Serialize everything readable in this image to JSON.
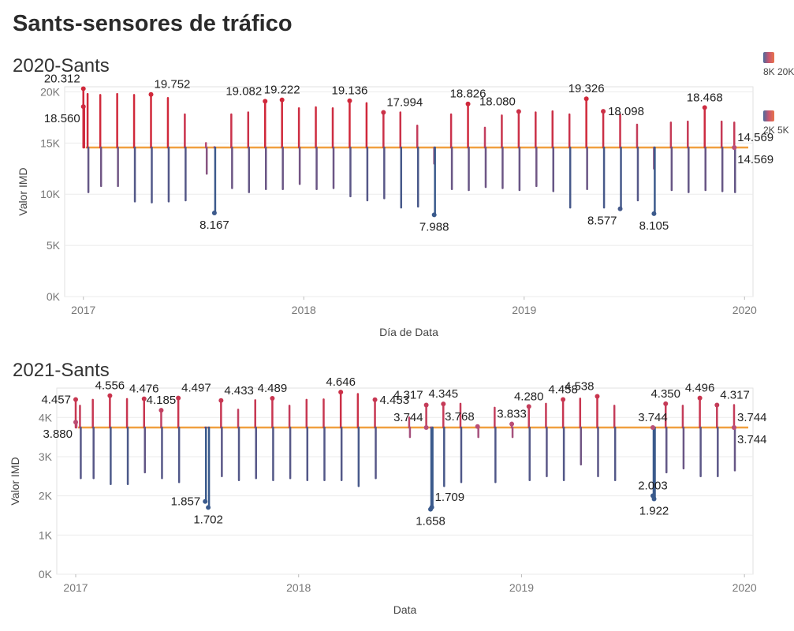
{
  "dashboard": {
    "title": "Sants-sensores de tráfico"
  },
  "legend": [
    {
      "label": "8K 20K",
      "gradient": [
        "#4a6a9c",
        "#c85570",
        "#e8744a"
      ]
    },
    {
      "label": "2K 5K",
      "gradient": [
        "#4a6a9c",
        "#c85570",
        "#e8744a"
      ]
    }
  ],
  "colors": {
    "low": "#3a5a8c",
    "mid": "#b8507a",
    "high": "#d0283a",
    "reference": "#f0a040",
    "grid": "#ebebeb"
  },
  "chart_data": [
    {
      "type": "line",
      "title": "2020-Sants",
      "xlabel": "Día de Data",
      "ylabel": "Valor IMD",
      "x_ticks": [
        "2017",
        "2018",
        "2019",
        "2020"
      ],
      "y_ticks": [
        "0K",
        "5K",
        "10K",
        "15K",
        "20K"
      ],
      "ylim": [
        0,
        20500
      ],
      "xlim": [
        "2016-12-01",
        "2020-01-15"
      ],
      "grid": true,
      "reference_value": 14569,
      "series": [
        {
          "values": [
            {
              "x": "2017-01-01",
              "high": 20312,
              "low": 18560
            },
            {
              "x": "2017-01-08",
              "high": 19800,
              "low": 10200
            },
            {
              "x": "2017-01-29",
              "high": 19700,
              "low": 10800
            },
            {
              "x": "2017-02-26",
              "high": 19800,
              "low": 10800
            },
            {
              "x": "2017-03-26",
              "high": 19700,
              "low": 9300
            },
            {
              "x": "2017-04-23",
              "high": 19752,
              "low": 9200
            },
            {
              "x": "2017-05-21",
              "high": 19400,
              "low": 9300
            },
            {
              "x": "2017-06-18",
              "high": 17800,
              "low": 9400
            },
            {
              "x": "2017-07-23",
              "high": 15000,
              "low": 12000
            },
            {
              "x": "2017-08-06",
              "high": 14600,
              "low": 8167
            },
            {
              "x": "2017-09-03",
              "high": 17800,
              "low": 10600
            },
            {
              "x": "2017-10-01",
              "high": 18000,
              "low": 10200
            },
            {
              "x": "2017-10-29",
              "high": 19082,
              "low": 10500
            },
            {
              "x": "2017-11-26",
              "high": 19222,
              "low": 10500
            },
            {
              "x": "2017-12-24",
              "high": 18400,
              "low": 11000
            },
            {
              "x": "2018-01-21",
              "high": 18500,
              "low": 10500
            },
            {
              "x": "2018-02-18",
              "high": 18400,
              "low": 10600
            },
            {
              "x": "2018-03-18",
              "high": 19136,
              "low": 9800
            },
            {
              "x": "2018-04-15",
              "high": 18900,
              "low": 9400
            },
            {
              "x": "2018-05-13",
              "high": 17994,
              "low": 9600
            },
            {
              "x": "2018-06-10",
              "high": 18000,
              "low": 8700
            },
            {
              "x": "2018-07-08",
              "high": 16700,
              "low": 8800
            },
            {
              "x": "2018-08-05",
              "high": 13000,
              "low": 7988
            },
            {
              "x": "2018-09-02",
              "high": 17800,
              "low": 10500
            },
            {
              "x": "2018-09-30",
              "high": 18826,
              "low": 10400
            },
            {
              "x": "2018-10-28",
              "high": 16500,
              "low": 10700
            },
            {
              "x": "2018-11-25",
              "high": 17700,
              "low": 10600
            },
            {
              "x": "2018-12-23",
              "high": 18080,
              "low": 10400
            },
            {
              "x": "2019-01-20",
              "high": 18000,
              "low": 10800
            },
            {
              "x": "2019-02-17",
              "high": 18100,
              "low": 10300
            },
            {
              "x": "2019-03-17",
              "high": 17800,
              "low": 8700
            },
            {
              "x": "2019-04-14",
              "high": 19326,
              "low": 10500
            },
            {
              "x": "2019-05-12",
              "high": 18098,
              "low": 8700
            },
            {
              "x": "2019-06-09",
              "high": 17800,
              "low": 8577
            },
            {
              "x": "2019-07-07",
              "high": 16800,
              "low": 9400
            },
            {
              "x": "2019-08-04",
              "high": 12500,
              "low": 8105
            },
            {
              "x": "2019-09-01",
              "high": 17000,
              "low": 10400
            },
            {
              "x": "2019-09-29",
              "high": 17100,
              "low": 10200
            },
            {
              "x": "2019-10-27",
              "high": 18468,
              "low": 10400
            },
            {
              "x": "2019-11-24",
              "high": 17100,
              "low": 10300
            },
            {
              "x": "2019-12-15",
              "high": 17000,
              "low": 10200
            }
          ]
        }
      ],
      "annotations": [
        {
          "x": "2017-01-01",
          "y": 20312,
          "text": "20.312",
          "pos": "above-left"
        },
        {
          "x": "2017-01-01",
          "y": 18560,
          "text": "18.560",
          "pos": "below-left"
        },
        {
          "x": "2017-04-23",
          "y": 19752,
          "text": "19.752",
          "pos": "above-right"
        },
        {
          "x": "2017-08-06",
          "y": 8167,
          "text": "8.167",
          "pos": "below"
        },
        {
          "x": "2017-10-29",
          "y": 19082,
          "text": "19.082",
          "pos": "above-left"
        },
        {
          "x": "2017-11-26",
          "y": 19222,
          "text": "19.222",
          "pos": "above"
        },
        {
          "x": "2018-03-18",
          "y": 19136,
          "text": "19.136",
          "pos": "above"
        },
        {
          "x": "2018-05-13",
          "y": 17994,
          "text": "17.994",
          "pos": "above-right"
        },
        {
          "x": "2018-08-05",
          "y": 7988,
          "text": "7.988",
          "pos": "below"
        },
        {
          "x": "2018-09-30",
          "y": 18826,
          "text": "18.826",
          "pos": "above"
        },
        {
          "x": "2018-12-23",
          "y": 18080,
          "text": "18.080",
          "pos": "above-left"
        },
        {
          "x": "2019-04-14",
          "y": 19326,
          "text": "19.326",
          "pos": "above"
        },
        {
          "x": "2019-05-12",
          "y": 18098,
          "text": "18.098",
          "pos": "right"
        },
        {
          "x": "2019-06-09",
          "y": 8577,
          "text": "8.577",
          "pos": "below-left"
        },
        {
          "x": "2019-08-04",
          "y": 8105,
          "text": "8.105",
          "pos": "below"
        },
        {
          "x": "2019-10-27",
          "y": 18468,
          "text": "18.468",
          "pos": "above"
        },
        {
          "x": "2019-12-15",
          "y": 14569,
          "text": "14.569",
          "pos": "above-right"
        },
        {
          "x": "2019-12-15",
          "y": 14569,
          "text": "14.569",
          "pos": "below-right"
        }
      ]
    },
    {
      "type": "line",
      "title": "2021-Sants",
      "xlabel": "Data",
      "ylabel": "Valor IMD",
      "x_ticks": [
        "2017",
        "2018",
        "2019",
        "2020"
      ],
      "y_ticks": [
        "0K",
        "1K",
        "2K",
        "3K",
        "4K"
      ],
      "ylim": [
        0,
        4750
      ],
      "xlim": [
        "2016-12-01",
        "2020-01-15"
      ],
      "grid": true,
      "reference_value": 3744,
      "series": [
        {
          "values": [
            {
              "x": "2017-01-01",
              "high": 4457,
              "low": 3880
            },
            {
              "x": "2017-01-08",
              "high": 4300,
              "low": 2450
            },
            {
              "x": "2017-01-29",
              "high": 4450,
              "low": 2450
            },
            {
              "x": "2017-02-26",
              "high": 4556,
              "low": 2300
            },
            {
              "x": "2017-03-26",
              "high": 4470,
              "low": 2300
            },
            {
              "x": "2017-04-23",
              "high": 4476,
              "low": 2600
            },
            {
              "x": "2017-05-21",
              "high": 4185,
              "low": 2450
            },
            {
              "x": "2017-06-18",
              "high": 4497,
              "low": 2350
            },
            {
              "x": "2017-08-01",
              "high": 3744,
              "low": 1857
            },
            {
              "x": "2017-08-06",
              "high": 3744,
              "low": 1702
            },
            {
              "x": "2017-08-27",
              "high": 4433,
              "low": 2500
            },
            {
              "x": "2017-09-24",
              "high": 4200,
              "low": 2400
            },
            {
              "x": "2017-10-22",
              "high": 4440,
              "low": 2450
            },
            {
              "x": "2017-11-19",
              "high": 4489,
              "low": 2400
            },
            {
              "x": "2017-12-17",
              "high": 4300,
              "low": 2450
            },
            {
              "x": "2018-01-14",
              "high": 4450,
              "low": 2400
            },
            {
              "x": "2018-02-11",
              "high": 4460,
              "low": 2400
            },
            {
              "x": "2018-03-11",
              "high": 4646,
              "low": 2400
            },
            {
              "x": "2018-04-08",
              "high": 4600,
              "low": 2250
            },
            {
              "x": "2018-05-06",
              "high": 4453,
              "low": 2450
            },
            {
              "x": "2018-07-01",
              "high": 4000,
              "low": 3500
            },
            {
              "x": "2018-07-29",
              "high": 4317,
              "low": 3744
            },
            {
              "x": "2018-08-05",
              "high": 3744,
              "low": 1658
            },
            {
              "x": "2018-08-07",
              "high": 3744,
              "low": 1709
            },
            {
              "x": "2018-08-26",
              "high": 4345,
              "low": 2250
            },
            {
              "x": "2018-09-23",
              "high": 4350,
              "low": 2350
            },
            {
              "x": "2018-10-21",
              "high": 3768,
              "low": 3500
            },
            {
              "x": "2018-11-18",
              "high": 4250,
              "low": 2350
            },
            {
              "x": "2018-12-16",
              "high": 3833,
              "low": 3500
            },
            {
              "x": "2019-01-13",
              "high": 4280,
              "low": 2400
            },
            {
              "x": "2019-02-10",
              "high": 4350,
              "low": 2500
            },
            {
              "x": "2019-03-10",
              "high": 4458,
              "low": 2400
            },
            {
              "x": "2019-04-07",
              "high": 4480,
              "low": 2800
            },
            {
              "x": "2019-05-05",
              "high": 4538,
              "low": 2500
            },
            {
              "x": "2019-06-02",
              "high": 4300,
              "low": 2400
            },
            {
              "x": "2019-08-04",
              "high": 3744,
              "low": 2003
            },
            {
              "x": "2019-08-06",
              "high": 3744,
              "low": 1922
            },
            {
              "x": "2019-08-25",
              "high": 4350,
              "low": 2600
            },
            {
              "x": "2019-09-22",
              "high": 4300,
              "low": 2700
            },
            {
              "x": "2019-10-20",
              "high": 4496,
              "low": 2500
            },
            {
              "x": "2019-11-17",
              "high": 4317,
              "low": 2500
            },
            {
              "x": "2019-12-15",
              "high": 4317,
              "low": 2650
            }
          ]
        }
      ],
      "annotations": [
        {
          "x": "2017-01-01",
          "y": 4457,
          "text": "4.457",
          "pos": "left"
        },
        {
          "x": "2017-01-01",
          "y": 3880,
          "text": "3.880",
          "pos": "below-left"
        },
        {
          "x": "2017-02-26",
          "y": 4556,
          "text": "4.556",
          "pos": "above"
        },
        {
          "x": "2017-04-23",
          "y": 4476,
          "text": "4.476",
          "pos": "above"
        },
        {
          "x": "2017-05-21",
          "y": 4185,
          "text": "4.185",
          "pos": "above"
        },
        {
          "x": "2017-06-18",
          "y": 4497,
          "text": "4.497",
          "pos": "above-right"
        },
        {
          "x": "2017-08-01",
          "y": 1857,
          "text": "1.857",
          "pos": "left"
        },
        {
          "x": "2017-08-06",
          "y": 1702,
          "text": "1.702",
          "pos": "below"
        },
        {
          "x": "2017-08-27",
          "y": 4433,
          "text": "4.433",
          "pos": "above-right"
        },
        {
          "x": "2017-11-19",
          "y": 4489,
          "text": "4.489",
          "pos": "above"
        },
        {
          "x": "2018-03-11",
          "y": 4646,
          "text": "4.646",
          "pos": "above"
        },
        {
          "x": "2018-05-06",
          "y": 4453,
          "text": "4.453",
          "pos": "right"
        },
        {
          "x": "2018-07-29",
          "y": 4317,
          "text": "4.317",
          "pos": "above-left"
        },
        {
          "x": "2018-07-29",
          "y": 3744,
          "text": "3.744",
          "pos": "above-left"
        },
        {
          "x": "2018-08-07",
          "y": 1709,
          "text": "1.709",
          "pos": "above-right"
        },
        {
          "x": "2018-08-05",
          "y": 1658,
          "text": "1.658",
          "pos": "below"
        },
        {
          "x": "2018-08-26",
          "y": 4345,
          "text": "4.345",
          "pos": "above"
        },
        {
          "x": "2018-10-21",
          "y": 3768,
          "text": "3.768",
          "pos": "above-left"
        },
        {
          "x": "2018-12-16",
          "y": 3833,
          "text": "3.833",
          "pos": "above"
        },
        {
          "x": "2019-01-13",
          "y": 4280,
          "text": "4.280",
          "pos": "above"
        },
        {
          "x": "2019-03-10",
          "y": 4458,
          "text": "4.458",
          "pos": "above"
        },
        {
          "x": "2019-05-05",
          "y": 4538,
          "text": "4.538",
          "pos": "above-left"
        },
        {
          "x": "2019-08-04",
          "y": 3744,
          "text": "3.744",
          "pos": "above"
        },
        {
          "x": "2019-08-04",
          "y": 2003,
          "text": "2.003",
          "pos": "above"
        },
        {
          "x": "2019-08-06",
          "y": 1922,
          "text": "1.922",
          "pos": "below"
        },
        {
          "x": "2019-08-25",
          "y": 4350,
          "text": "4.350",
          "pos": "above"
        },
        {
          "x": "2019-10-20",
          "y": 4496,
          "text": "4.496",
          "pos": "above"
        },
        {
          "x": "2019-11-17",
          "y": 4317,
          "text": "4.317",
          "pos": "above-right"
        },
        {
          "x": "2019-12-15",
          "y": 3744,
          "text": "3.744",
          "pos": "above-right"
        },
        {
          "x": "2019-12-15",
          "y": 3744,
          "text": "3.744",
          "pos": "below-right"
        }
      ]
    }
  ]
}
